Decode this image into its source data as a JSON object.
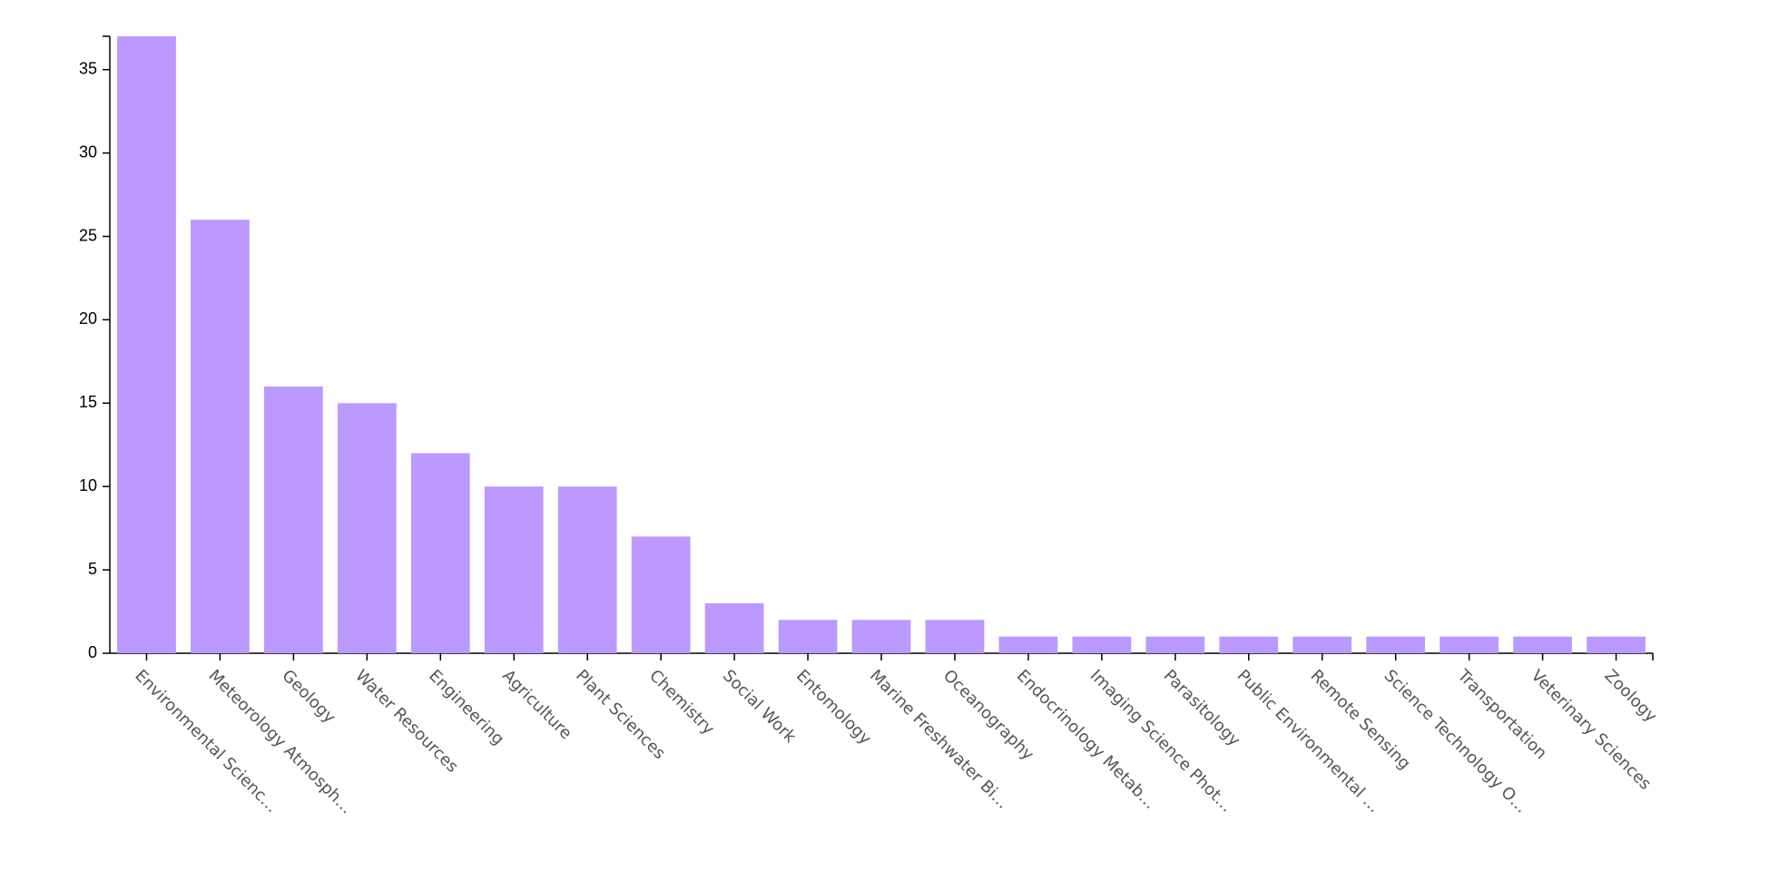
{
  "chart_data": {
    "type": "bar",
    "categories": [
      "Environmental Scienc…",
      "Meteorology Atmosph…",
      "Geology",
      "Water Resources",
      "Engineering",
      "Agriculture",
      "Plant Sciences",
      "Chemistry",
      "Social Work",
      "Entomology",
      "Marine Freshwater Bi…",
      "Oceanography",
      "Endocrinology Metab…",
      "Imaging Science Phot…",
      "Parasitology",
      "Public Environmental …",
      "Remote Sensing",
      "Science Technology O…",
      "Transportation",
      "Veterinary Sciences",
      "Zoology"
    ],
    "values": [
      37,
      26,
      16,
      15,
      12,
      10,
      10,
      7,
      3,
      2,
      2,
      2,
      1,
      1,
      1,
      1,
      1,
      1,
      1,
      1,
      1
    ],
    "color": "#bb99ff",
    "ylim": [
      0,
      37
    ],
    "yticks": [
      0,
      5,
      10,
      15,
      20,
      25,
      30,
      35
    ],
    "grid": false
  }
}
